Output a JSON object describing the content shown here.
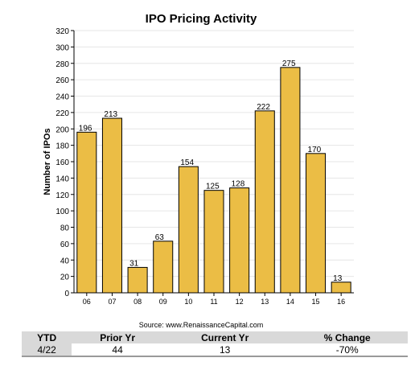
{
  "chart_data": {
    "type": "bar",
    "title": "IPO Pricing Activity",
    "ylabel": "Number of IPOs",
    "xlabel": "",
    "categories": [
      "06",
      "07",
      "08",
      "09",
      "10",
      "11",
      "12",
      "13",
      "14",
      "15",
      "16"
    ],
    "values": [
      196,
      213,
      31,
      63,
      154,
      125,
      128,
      222,
      275,
      170,
      13
    ],
    "ylim": [
      0,
      320
    ],
    "yticks": [
      0,
      20,
      40,
      60,
      80,
      100,
      120,
      140,
      160,
      180,
      200,
      220,
      240,
      260,
      280,
      300,
      320
    ],
    "grid": true,
    "bar_color": "#ebbd45",
    "source": "Source: www.RenaissanceCapital.com"
  },
  "ytd_table": {
    "headers": [
      "YTD",
      "Prior Yr",
      "Current Yr",
      "% Change"
    ],
    "row": [
      "4/22",
      "44",
      "13",
      "-70%"
    ]
  },
  "colors": {
    "bar": "#ebbd45",
    "header_bg": "#d9d9d9",
    "grid": "#e6e6e6"
  }
}
